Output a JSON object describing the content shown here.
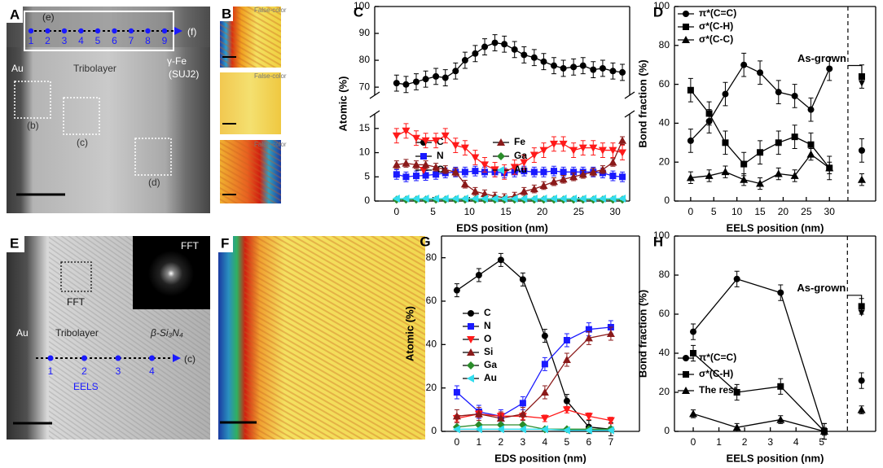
{
  "panels": {
    "A": {
      "label": "A",
      "box_label": "(e)",
      "points": [
        "1",
        "2",
        "3",
        "4",
        "5",
        "6",
        "7",
        "8",
        "9"
      ],
      "arrow_end": "(f)",
      "left": "Au",
      "middle": "Tribolayer",
      "right": [
        "γ-Fe",
        "(SUJ2)"
      ],
      "regions": [
        "(b)",
        "(c)",
        "(d)"
      ]
    },
    "B": {
      "label": "B",
      "captions": [
        "False-color",
        "False-color",
        "False-color"
      ]
    },
    "E": {
      "label": "E",
      "box_label": "FFT",
      "inset_label": "FFT",
      "left": "Au",
      "middle": "Tribolayer",
      "right": "β-Si₃N₄",
      "points": [
        "1",
        "2",
        "3",
        "4"
      ],
      "path_label": "EELS",
      "arrow_end": "(c)"
    },
    "F": {
      "label": "F"
    }
  },
  "chart_data": [
    {
      "type": "line",
      "panel_label": "C",
      "xlabel": "EDS position (nm)",
      "ylabel": "Atomic (%)",
      "xlim": [
        -3,
        32
      ],
      "xticks": [
        0,
        5,
        10,
        15,
        20,
        25,
        30
      ],
      "ylim": [
        0,
        18
      ],
      "yticks": [
        0,
        5,
        10,
        15
      ],
      "ylim_upper": [
        67,
        100
      ],
      "yticks_upper": [
        70,
        80,
        90,
        100
      ],
      "axis_break": true,
      "legend": "center",
      "x": [
        0,
        1.3,
        2.7,
        4,
        5.4,
        6.7,
        8.1,
        9.4,
        10.8,
        12.1,
        13.5,
        14.8,
        16.2,
        17.5,
        18.9,
        20.2,
        21.6,
        22.9,
        24.3,
        25.6,
        27,
        28.3,
        29.7,
        31
      ],
      "series": [
        {
          "name": "C",
          "color": "#000000",
          "marker": "circle",
          "error": 3,
          "values": [
            71.5,
            71,
            72,
            73,
            74,
            73.5,
            76,
            80,
            82.5,
            85,
            86.5,
            86,
            84,
            82,
            81,
            79.5,
            78,
            77,
            77.5,
            78,
            76.5,
            77,
            76,
            75.5
          ]
        },
        {
          "name": "N",
          "color": "#1a1aff",
          "marker": "square",
          "error": 1,
          "values": [
            5.5,
            5,
            5.2,
            5.3,
            5.5,
            5.8,
            6,
            6,
            6.2,
            6,
            6,
            5.8,
            6,
            6.2,
            6,
            6,
            6.2,
            6,
            6,
            6,
            6,
            5.8,
            5.2,
            5
          ]
        },
        {
          "name": "O",
          "color": "#ff1a1a",
          "marker": "triangle-down",
          "error": 1.5,
          "values": [
            13.5,
            14.5,
            13,
            12.5,
            12.5,
            13.5,
            11.5,
            11,
            9,
            7.5,
            6.5,
            6,
            7,
            8,
            9.5,
            10.5,
            11.8,
            11.8,
            10.5,
            11,
            11,
            10.5,
            10.5,
            10
          ]
        },
        {
          "name": "Fe",
          "color": "#8b1a1a",
          "marker": "triangle-up",
          "error": 0.8,
          "values": [
            7.5,
            7.8,
            7.5,
            7.5,
            7,
            6.5,
            6,
            3.5,
            2,
            1.5,
            1,
            0.7,
            1,
            2,
            2.5,
            3.2,
            4,
            4.5,
            5,
            5.5,
            6,
            6.5,
            8,
            12.5
          ]
        },
        {
          "name": "Ga",
          "color": "#2a8c2a",
          "marker": "diamond",
          "error": 0.2,
          "values": [
            0.3,
            0.3,
            0.3,
            0.3,
            0.3,
            0.3,
            0.3,
            0.3,
            0.3,
            0.3,
            0.3,
            0.3,
            0.3,
            0.3,
            0.3,
            0.3,
            0.3,
            0.3,
            0.3,
            0.3,
            0.3,
            0.3,
            0.3,
            0.3
          ]
        },
        {
          "name": "Au",
          "color": "#33ddee",
          "marker": "triangle-left",
          "error": 0.2,
          "values": [
            0.5,
            0.5,
            0.5,
            0.5,
            0.5,
            0.5,
            0.5,
            0.5,
            0.5,
            0.5,
            0.5,
            0.5,
            0.5,
            0.5,
            0.5,
            0.5,
            0.5,
            0.5,
            0.5,
            0.5,
            0.5,
            0.5,
            0.5,
            0.5
          ]
        }
      ]
    },
    {
      "type": "line",
      "panel_label": "D",
      "xlabel": "EELS position (nm)",
      "ylabel": "Bond fraction (%)",
      "xlim": [
        -3.5,
        40
      ],
      "xticks": [
        0,
        5,
        10,
        15,
        20,
        25,
        30
      ],
      "ylim": [
        0,
        100
      ],
      "yticks": [
        0,
        20,
        40,
        60,
        80,
        100
      ],
      "legend": "upper left",
      "annotation": "As-grown",
      "divider_x": 34,
      "as_grown_x": 37,
      "x": [
        0,
        4,
        7.5,
        11.5,
        15,
        19,
        22.5,
        26,
        30
      ],
      "series": [
        {
          "name": "π*(C=C)",
          "color": "#000000",
          "marker": "circle",
          "error": 6,
          "values": [
            31,
            41,
            55,
            70,
            66,
            56,
            54,
            47,
            68
          ],
          "as_grown": 26
        },
        {
          "name": "σ*(C-H)",
          "color": "#000000",
          "marker": "square",
          "error": 6,
          "values": [
            57,
            45,
            30,
            19,
            25,
            30,
            33,
            29,
            17
          ],
          "as_grown": 64
        },
        {
          "name": "σ*(C-C)",
          "color": "#000000",
          "marker": "triangle-up",
          "error": 3,
          "values": [
            12,
            13,
            15,
            11,
            9,
            14,
            13,
            24,
            17
          ],
          "as_grown": 11
        }
      ]
    },
    {
      "type": "line",
      "panel_label": "G",
      "xlabel": "EDS position (nm)",
      "ylabel": "Atomic (%)",
      "xlim": [
        -0.7,
        8.3
      ],
      "xticks": [
        0,
        1,
        2,
        3,
        4,
        5,
        6,
        7
      ],
      "ylim": [
        0,
        90
      ],
      "yticks": [
        0,
        20,
        40,
        60,
        80
      ],
      "legend": "center left",
      "x": [
        0,
        1,
        2,
        3,
        4,
        5,
        6,
        7
      ],
      "series": [
        {
          "name": "C",
          "color": "#000000",
          "marker": "circle",
          "error": 3,
          "values": [
            65,
            72,
            79,
            70,
            44,
            14,
            2,
            1
          ]
        },
        {
          "name": "N",
          "color": "#1a1aff",
          "marker": "square",
          "error": 3,
          "values": [
            18,
            9,
            7,
            13,
            31,
            42,
            47,
            48
          ]
        },
        {
          "name": "O",
          "color": "#ff1a1a",
          "marker": "triangle-down",
          "error": 1.5,
          "values": [
            6,
            8,
            7,
            7,
            6,
            10,
            7,
            5
          ]
        },
        {
          "name": "Si",
          "color": "#8b1a1a",
          "marker": "triangle-up",
          "error": 3,
          "values": [
            7,
            8,
            6,
            8,
            18,
            33,
            43,
            45
          ]
        },
        {
          "name": "Ga",
          "color": "#2a8c2a",
          "marker": "diamond",
          "error": 0.5,
          "values": [
            2,
            3,
            3,
            3,
            1,
            1,
            1,
            1
          ]
        },
        {
          "name": "Au",
          "color": "#33ddee",
          "marker": "triangle-left",
          "error": 0.3,
          "values": [
            1,
            1,
            1,
            1,
            1,
            0.5,
            0.5,
            0.5
          ]
        }
      ]
    },
    {
      "type": "line",
      "panel_label": "H",
      "xlabel": "EELS position (nm)",
      "ylabel": "Bond fraction (%)",
      "xlim": [
        -0.73,
        7.1
      ],
      "xticks": [
        0,
        1,
        2,
        3,
        4,
        5
      ],
      "ylim": [
        0,
        100
      ],
      "yticks": [
        0,
        20,
        40,
        60,
        80,
        100
      ],
      "legend": "center left",
      "annotation": "As-grown",
      "divider_x": 6,
      "as_grown_x": 6.55,
      "x": [
        0,
        1.7,
        3.4,
        5.1
      ],
      "series": [
        {
          "name": "π*(C=C)",
          "color": "#000000",
          "marker": "circle",
          "error": 4,
          "values": [
            51,
            78,
            71,
            0
          ],
          "as_grown": 26
        },
        {
          "name": "σ*(C-H)",
          "color": "#000000",
          "marker": "square",
          "error": 4,
          "values": [
            40,
            20,
            23,
            0
          ],
          "as_grown": 64
        },
        {
          "name": "The rest",
          "color": "#000000",
          "marker": "triangle-up",
          "error": 2,
          "values": [
            9,
            2,
            6,
            0
          ],
          "as_grown": 11
        }
      ]
    }
  ]
}
